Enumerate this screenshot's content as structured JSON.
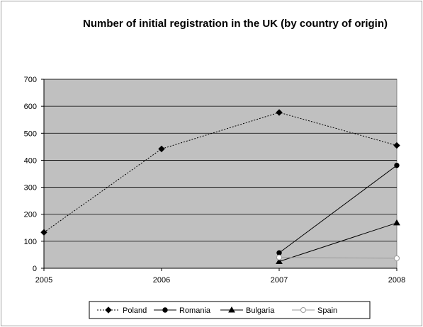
{
  "chart_data": {
    "type": "line",
    "title": "Number of initial registration in the UK (by country of origin)",
    "xlabel": "",
    "ylabel": "",
    "x": [
      "2005",
      "2006",
      "2007",
      "2008"
    ],
    "ylim": [
      0,
      700
    ],
    "yticks": [
      0,
      100,
      200,
      300,
      400,
      500,
      600,
      700
    ],
    "grid": true,
    "legend_position": "bottom",
    "plot_background": "#c0c0c0",
    "series": [
      {
        "name": "Poland",
        "values": [
          133,
          442,
          577,
          455
        ],
        "marker": "diamond",
        "line": "dashed",
        "color": "#000000"
      },
      {
        "name": "Romania",
        "values": [
          null,
          null,
          57,
          381
        ],
        "marker": "circle",
        "line": "solid",
        "color": "#000000"
      },
      {
        "name": "Bulgaria",
        "values": [
          null,
          null,
          25,
          168
        ],
        "marker": "triangle",
        "line": "solid",
        "color": "#000000"
      },
      {
        "name": "Spain",
        "values": [
          null,
          null,
          40,
          37
        ],
        "marker": "open-circle",
        "line": "solid",
        "color": "#9a9a9a"
      }
    ]
  }
}
